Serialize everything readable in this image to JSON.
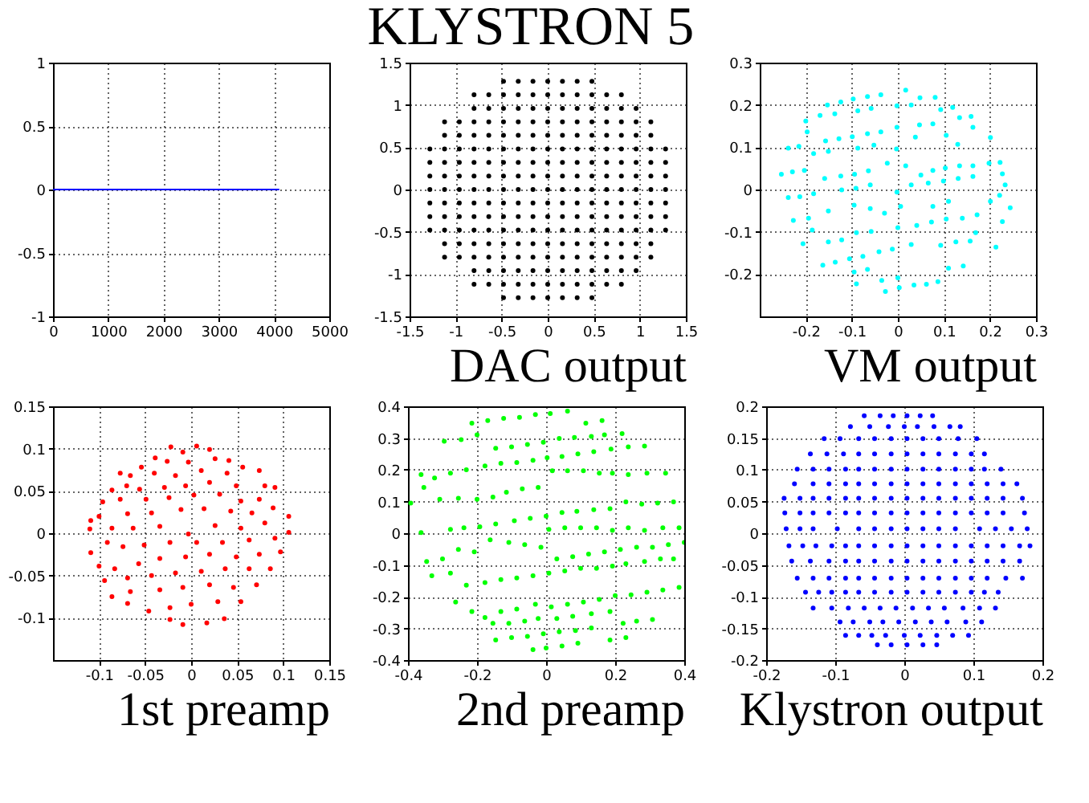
{
  "chart_data": [
    {
      "type": "line",
      "xlim": [
        0,
        5000
      ],
      "xticks": [
        0,
        1000,
        2000,
        3000,
        4000,
        5000
      ],
      "ylim": [
        -1,
        1
      ],
      "yticks": [
        -1,
        -0.5,
        0,
        0.5,
        1
      ],
      "grid": true,
      "marker": "none",
      "line_style": "solid",
      "series": [
        {
          "color": "#0000ff",
          "x": [
            0,
            4095
          ],
          "values": [
            0,
            0
          ]
        }
      ]
    },
    {
      "type": "scatter",
      "title": "KLYSTRON 5",
      "xlabel": "DAC output",
      "xlim": [
        -1.5,
        1.5
      ],
      "xticks": [
        -1.5,
        -1,
        -0.5,
        0,
        0.5,
        1,
        1.5
      ],
      "ylim": [
        -1.5,
        1.5
      ],
      "yticks": [
        -1.5,
        -1,
        -0.5,
        0,
        0.5,
        1,
        1.5
      ],
      "grid": true,
      "marker": "circle",
      "series": [
        {
          "color": "#000000",
          "x": [
            -0.48,
            -0.32,
            -0.16,
            0,
            0.16,
            0.32,
            0.48,
            -0.8,
            -0.64,
            -0.48,
            -0.32,
            -0.16,
            0,
            0.16,
            0.32,
            0.48,
            0.64,
            0.8,
            -0.8,
            -0.64,
            -0.48,
            -0.32,
            -0.16,
            0,
            0.16,
            0.32,
            0.48,
            0.64,
            0.8,
            0.96,
            -1.12,
            -0.96,
            -0.8,
            -0.64,
            -0.48,
            -0.32,
            -0.16,
            0,
            0.16,
            0.32,
            0.48,
            0.64,
            0.8,
            0.96,
            1.12,
            -1.12,
            -0.96,
            -0.8,
            -0.64,
            -0.48,
            -0.32,
            -0.16,
            0,
            0.16,
            0.32,
            0.48,
            0.64,
            0.8,
            0.96,
            1.12,
            -1.28,
            -1.12,
            -0.96,
            -0.8,
            -0.64,
            -0.48,
            -0.32,
            -0.16,
            0,
            0.16,
            0.32,
            0.48,
            0.64,
            0.8,
            0.96,
            1.12,
            1.28,
            -1.28,
            -1.12,
            -0.96,
            -0.8,
            -0.64,
            -0.48,
            -0.32,
            -0.16,
            0,
            0.16,
            0.32,
            0.48,
            0.64,
            0.8,
            0.96,
            1.12,
            1.28,
            -1.28,
            -1.12,
            -0.96,
            -0.8,
            -0.64,
            -0.48,
            -0.32,
            -0.16,
            0,
            0.16,
            0.32,
            0.48,
            0.64,
            0.8,
            0.96,
            1.12,
            1.28,
            -1.28,
            -1.12,
            -0.96,
            -0.8,
            -0.64,
            -0.48,
            -0.32,
            -0.16,
            0,
            0.16,
            0.32,
            0.48,
            0.64,
            0.8,
            0.96,
            1.12,
            1.28,
            -1.28,
            -1.12,
            -0.96,
            -0.8,
            -0.64,
            -0.48,
            -0.32,
            -0.16,
            0,
            0.16,
            0.32,
            0.48,
            0.64,
            0.8,
            0.96,
            1.12,
            1.28,
            -1.28,
            -1.12,
            -0.96,
            -0.8,
            -0.64,
            -0.48,
            -0.32,
            -0.16,
            0,
            0.16,
            0.32,
            0.48,
            0.64,
            0.8,
            0.96,
            1.12,
            1.28,
            -1.28,
            -1.12,
            -0.96,
            -0.8,
            -0.64,
            -0.48,
            -0.32,
            -0.16,
            0,
            0.16,
            0.32,
            0.48,
            0.64,
            0.8,
            0.96,
            1.12,
            1.28,
            -1.12,
            -0.96,
            -0.8,
            -0.64,
            -0.48,
            -0.32,
            -0.16,
            0,
            0.16,
            0.32,
            0.48,
            0.64,
            0.8,
            0.96,
            1.12,
            -1.12,
            -0.96,
            -0.8,
            -0.64,
            -0.48,
            -0.32,
            -0.16,
            0,
            0.16,
            0.32,
            0.48,
            0.64,
            0.8,
            0.96,
            1.12,
            -0.8,
            -0.64,
            -0.48,
            -0.32,
            -0.16,
            0,
            0.16,
            0.32,
            0.48,
            0.64,
            0.8,
            0.96,
            -0.8,
            -0.64,
            -0.48,
            -0.32,
            -0.16,
            0,
            0.16,
            0.32,
            0.48,
            0.64,
            0.8,
            -0.48,
            -0.32,
            -0.16,
            0,
            0.16,
            0.32,
            0.48
          ],
          "values": [
            1.28,
            1.28,
            1.28,
            1.28,
            1.28,
            1.28,
            1.28,
            1.12,
            1.12,
            1.12,
            1.12,
            1.12,
            1.12,
            1.12,
            1.12,
            1.12,
            1.12,
            1.12,
            0.96,
            0.96,
            0.96,
            0.96,
            0.96,
            0.96,
            0.96,
            0.96,
            0.96,
            0.96,
            0.96,
            0.96,
            0.8,
            0.8,
            0.8,
            0.8,
            0.8,
            0.8,
            0.8,
            0.8,
            0.8,
            0.8,
            0.8,
            0.8,
            0.8,
            0.8,
            0.8,
            0.64,
            0.64,
            0.64,
            0.64,
            0.64,
            0.64,
            0.64,
            0.64,
            0.64,
            0.64,
            0.64,
            0.64,
            0.64,
            0.64,
            0.64,
            0.48,
            0.48,
            0.48,
            0.48,
            0.48,
            0.48,
            0.48,
            0.48,
            0.48,
            0.48,
            0.48,
            0.48,
            0.48,
            0.48,
            0.48,
            0.48,
            0.48,
            0.32,
            0.32,
            0.32,
            0.32,
            0.32,
            0.32,
            0.32,
            0.32,
            0.32,
            0.32,
            0.32,
            0.32,
            0.32,
            0.32,
            0.32,
            0.32,
            0.32,
            0.16,
            0.16,
            0.16,
            0.16,
            0.16,
            0.16,
            0.16,
            0.16,
            0.16,
            0.16,
            0.16,
            0.16,
            0.16,
            0.16,
            0.16,
            0.16,
            0.16,
            0,
            0,
            0,
            0,
            0,
            0,
            0,
            0,
            0,
            0,
            0,
            0,
            0,
            0,
            0,
            0,
            0,
            -0.16,
            -0.16,
            -0.16,
            -0.16,
            -0.16,
            -0.16,
            -0.16,
            -0.16,
            -0.16,
            -0.16,
            -0.16,
            -0.16,
            -0.16,
            -0.16,
            -0.16,
            -0.16,
            -0.16,
            -0.32,
            -0.32,
            -0.32,
            -0.32,
            -0.32,
            -0.32,
            -0.32,
            -0.32,
            -0.32,
            -0.32,
            -0.32,
            -0.32,
            -0.32,
            -0.32,
            -0.32,
            -0.32,
            -0.32,
            -0.48,
            -0.48,
            -0.48,
            -0.48,
            -0.48,
            -0.48,
            -0.48,
            -0.48,
            -0.48,
            -0.48,
            -0.48,
            -0.48,
            -0.48,
            -0.48,
            -0.48,
            -0.48,
            -0.48,
            -0.64,
            -0.64,
            -0.64,
            -0.64,
            -0.64,
            -0.64,
            -0.64,
            -0.64,
            -0.64,
            -0.64,
            -0.64,
            -0.64,
            -0.64,
            -0.64,
            -0.64,
            -0.8,
            -0.8,
            -0.8,
            -0.8,
            -0.8,
            -0.8,
            -0.8,
            -0.8,
            -0.8,
            -0.8,
            -0.8,
            -0.8,
            -0.8,
            -0.8,
            -0.8,
            -0.96,
            -0.96,
            -0.96,
            -0.96,
            -0.96,
            -0.96,
            -0.96,
            -0.96,
            -0.96,
            -0.96,
            -0.96,
            -0.96,
            -1.12,
            -1.12,
            -1.12,
            -1.12,
            -1.12,
            -1.12,
            -1.12,
            -1.12,
            -1.12,
            -1.12,
            -1.12,
            -1.28,
            -1.28,
            -1.28,
            -1.28,
            -1.28,
            -1.28,
            -1.28
          ]
        }
      ]
    },
    {
      "type": "scatter",
      "xlabel": "VM output",
      "xlim": [
        -0.3,
        0.3
      ],
      "xticks": [
        -0.2,
        -0.1,
        0,
        0.1,
        0.2,
        0.3
      ],
      "ylim": [
        -0.3,
        0.3
      ],
      "yticks": [
        -0.2,
        -0.1,
        0,
        0.1,
        0.2,
        0.3
      ],
      "grid": true,
      "marker": "circle",
      "series": [
        {
          "color": "#00ffff",
          "x": [
            0.017,
            -0.037,
            -0.066,
            -0.097,
            -0.124,
            -0.153,
            0.048,
            0.081,
            0.119,
            -0.2,
            -0.197,
            -0.169,
            -0.137,
            -0.087,
            -0.058,
            -0.002,
            0.029,
            0.093,
            0.159,
            -0.157,
            -0.128,
            -0.099,
            -0.066,
            -0.037,
            -0.002,
            0.047,
            0.076,
            0.134,
            0.163,
            0.201,
            -0.238,
            -0.215,
            -0.183,
            -0.151,
            -0.087,
            -0.052,
            -0.003,
            0.038,
            0.105,
            0.13,
            0.163,
            0.198,
            0.222,
            -0.253,
            -0.229,
            -0.203,
            -0.159,
            -0.124,
            -0.094,
            -0.064,
            -0.023,
            0.017,
            0.05,
            0.076,
            0.103,
            0.134,
            0.227,
            0.233,
            -0.238,
            -0.213,
            -0.183,
            -0.122,
            -0.091,
            -0.06,
            -0.002,
            0.029,
            0.066,
            0.099,
            0.131,
            0.163,
            0.221,
            0.201,
            0.244,
            -0.227,
            -0.194,
            -0.151,
            -0.095,
            -0.06,
            -0.029,
            0.006,
            0.076,
            0.11,
            0.14,
            0.172,
            0.227,
            -0.206,
            -0.186,
            -0.151,
            -0.122,
            -0.09,
            -0.058,
            0,
            0.041,
            0.073,
            0.105,
            0.169,
            0.213,
            -0.163,
            -0.136,
            -0.105,
            -0.076,
            -0.041,
            -0.012,
            0.029,
            0.093,
            0.126,
            0.157,
            0.142,
            0.11,
            -0.095,
            -0.09,
            -0.066,
            -0.035,
            0,
            -0.027,
            0.003,
            0.035,
            0.062,
            0.087
          ],
          "values": [
            0.235,
            0.224,
            0.22,
            0.214,
            0.207,
            0.2,
            0.217,
            0.218,
            0.194,
            0.162,
            0.136,
            0.175,
            0.179,
            0.186,
            0.192,
            0.198,
            0.2,
            0.189,
            0.173,
            0.115,
            0.12,
            0.125,
            0.132,
            0.136,
            0.147,
            0.153,
            0.155,
            0.17,
            0.147,
            0.123,
            0.098,
            0.102,
            0.085,
            0.09,
            0.098,
            0.105,
            0.096,
            0.124,
            0.128,
            0.107,
            0.056,
            0.062,
            0.064,
            0.036,
            0.042,
            0.045,
            0.026,
            0.032,
            0.036,
            0.044,
            0.062,
            0.056,
            0.034,
            0.045,
            0.051,
            0.056,
            0.037,
            0.011,
            -0.019,
            -0.017,
            -0.01,
            -0.001,
            0.003,
            0.011,
            -0.006,
            0.011,
            0.015,
            0.02,
            0.026,
            0.031,
            -0.014,
            -0.028,
            -0.043,
            -0.073,
            -0.068,
            -0.051,
            -0.037,
            -0.045,
            -0.056,
            -0.04,
            -0.04,
            -0.028,
            -0.068,
            -0.06,
            -0.076,
            -0.128,
            -0.096,
            -0.124,
            -0.119,
            -0.102,
            -0.099,
            -0.09,
            -0.085,
            -0.077,
            -0.07,
            -0.102,
            -0.136,
            -0.179,
            -0.172,
            -0.164,
            -0.158,
            -0.147,
            -0.141,
            -0.13,
            -0.132,
            -0.124,
            -0.122,
            -0.181,
            -0.186,
            -0.195,
            -0.223,
            -0.189,
            -0.215,
            -0.209,
            -0.241,
            -0.232,
            -0.226,
            -0.224,
            -0.218
          ]
        }
      ]
    },
    {
      "type": "scatter",
      "xlabel": "1st preamp",
      "xlim": [
        -0.15,
        0.15
      ],
      "xticks": [
        -0.1,
        -0.05,
        0,
        0.05,
        0.1,
        0.15
      ],
      "ylim": [
        -0.15,
        0.15
      ],
      "yticks": [
        -0.1,
        -0.05,
        0,
        0.05,
        0.1,
        0.15
      ],
      "grid": true,
      "marker": "circle",
      "series": [
        {
          "color": "#ff0000",
          "x": [
            -0.022,
            0.006,
            0.02,
            -0.039,
            -0.009,
            -0.054,
            -0.026,
            -0.003,
            0.026,
            0.041,
            0.056,
            -0.077,
            -0.066,
            -0.04,
            -0.017,
            0.011,
            0.039,
            0.074,
            -0.086,
            -0.07,
            -0.056,
            -0.029,
            -0.006,
            0.02,
            0.049,
            0.08,
            0.091,
            -0.096,
            -0.077,
            -0.049,
            -0.024,
            0.003,
            0.031,
            0.054,
            0.074,
            -0.109,
            -0.1,
            -0.069,
            -0.043,
            -0.011,
            0.014,
            0.043,
            0.066,
            0.089,
            0.106,
            -0.11,
            -0.086,
            -0.063,
            -0.034,
            -0.003,
            0.026,
            0.054,
            0.08,
            0.106,
            -0.109,
            -0.091,
            -0.074,
            -0.051,
            -0.023,
            0.006,
            0.034,
            0.063,
            0.091,
            -0.1,
            -0.083,
            -0.057,
            -0.034,
            -0.006,
            0.02,
            0.049,
            0.074,
            0.097,
            -0.094,
            -0.069,
            -0.043,
            -0.017,
            0.011,
            0.037,
            0.063,
            0.086,
            -0.086,
            -0.066,
            -0.034,
            -0.009,
            0.02,
            0.046,
            0.071,
            -0.069,
            -0.046,
            -0.023,
            0,
            0.029,
            0.054,
            -0.023,
            -0.009,
            0.017,
            0.036
          ],
          "values": [
            0.102,
            0.103,
            0.099,
            0.089,
            0.096,
            0.078,
            0.085,
            0.084,
            0.088,
            0.086,
            0.078,
            0.071,
            0.068,
            0.071,
            0.068,
            0.074,
            0.071,
            0.074,
            0.051,
            0.056,
            0.052,
            0.054,
            0.056,
            0.06,
            0.056,
            0.056,
            0.054,
            0.037,
            0.04,
            0.04,
            0.042,
            0.045,
            0.046,
            0.038,
            0.04,
            0.015,
            0.02,
            0.023,
            0.024,
            0.028,
            0.029,
            0.026,
            0.024,
            0.03,
            0.02,
            0.005,
            0.006,
            0.006,
            0.008,
            -0.001,
            0.009,
            0.006,
            0.012,
            0.001,
            -0.023,
            -0.011,
            -0.016,
            -0.014,
            -0.011,
            -0.011,
            -0.011,
            -0.008,
            -0.006,
            -0.039,
            -0.042,
            -0.036,
            -0.03,
            -0.028,
            -0.025,
            -0.028,
            -0.025,
            -0.022,
            -0.056,
            -0.053,
            -0.05,
            -0.047,
            -0.045,
            -0.042,
            -0.042,
            -0.042,
            -0.075,
            -0.069,
            -0.067,
            -0.064,
            -0.061,
            -0.064,
            -0.061,
            -0.083,
            -0.092,
            -0.088,
            -0.084,
            -0.081,
            -0.081,
            -0.102,
            -0.108,
            -0.106,
            -0.101
          ]
        }
      ]
    },
    {
      "type": "scatter",
      "xlabel": "2nd preamp",
      "xlim": [
        -0.4,
        0.4
      ],
      "xticks": [
        -0.4,
        -0.2,
        0,
        0.2,
        0.4
      ],
      "ylim": [
        -0.4,
        0.4
      ],
      "yticks": [
        -0.4,
        -0.3,
        -0.2,
        -0.1,
        0,
        0.1,
        0.2,
        0.3,
        0.4
      ],
      "grid": true,
      "marker": "circle",
      "series": [
        {
          "color": "#00ff00",
          "x": [
            0.062,
            0.012,
            -0.031,
            -0.077,
            -0.123,
            -0.169,
            -0.215,
            0.115,
            0.162,
            0.22,
            0.169,
            0.131,
            0.082,
            0.038,
            -0.008,
            -0.054,
            -0.1,
            -0.146,
            -0.2,
            -0.246,
            -0.295,
            0.285,
            0.238,
            0.188,
            0.138,
            0.092,
            0.046,
            0.003,
            -0.038,
            -0.085,
            -0.131,
            -0.177,
            -0.231,
            -0.277,
            -0.362,
            -0.323,
            0.346,
            0.292,
            0.238,
            0.192,
            0.154,
            0.108,
            0.062,
            0.018,
            -0.023,
            -0.069,
            -0.115,
            -0.154,
            -0.2,
            -0.254,
            -0.308,
            -0.392,
            -0.354,
            0.369,
            0.323,
            0.277,
            0.231,
            0.185,
            0.138,
            0.089,
            0.046,
            0,
            -0.046,
            -0.092,
            -0.146,
            -0.192,
            -0.238,
            -0.277,
            -0.362,
            0.385,
            0.338,
            0.285,
            0.238,
            0.192,
            0.146,
            0.1,
            0.054,
            0.008,
            0.4,
            0.354,
            0.308,
            0.262,
            0.215,
            0.169,
            0.123,
            0.077,
            0.031,
            -0.015,
            -0.062,
            -0.108,
            -0.162,
            -0.208,
            -0.254,
            -0.3,
            -0.346,
            -0.331,
            -0.277,
            -0.231,
            -0.177,
            -0.131,
            -0.085,
            -0.038,
            0.008,
            0.054,
            0.1,
            0.146,
            0.192,
            0.231,
            0.285,
            0.331,
            0.369,
            0.385,
            0.338,
            0.292,
            0.246,
            0.2,
            0.154,
            0.108,
            0.062,
            0.015,
            -0.031,
            -0.085,
            -0.131,
            -0.177,
            -0.262,
            -0.215,
            -0.154,
            -0.108,
            -0.062,
            -0.023,
            0.031,
            0.077,
            0.131,
            0.185,
            0.223,
            0.262,
            0.308,
            -0.146,
            -0.1,
            -0.054,
            -0.008,
            0.038,
            0.085,
            0.131,
            0.185,
            0.231,
            -0.038,
            0,
            0.046,
            0.092
          ],
          "values": [
            0.385,
            0.377,
            0.374,
            0.365,
            0.362,
            0.355,
            0.347,
            0.347,
            0.355,
            0.314,
            0.31,
            0.305,
            0.302,
            0.299,
            0.287,
            0.28,
            0.272,
            0.268,
            0.31,
            0.295,
            0.29,
            0.275,
            0.272,
            0.265,
            0.257,
            0.25,
            0.242,
            0.238,
            0.23,
            0.223,
            0.22,
            0.212,
            0.2,
            0.189,
            0.185,
            0.174,
            0.189,
            0.189,
            0.185,
            0.189,
            0.189,
            0.197,
            0.197,
            0.197,
            0.144,
            0.14,
            0.129,
            0.114,
            0.107,
            0.11,
            0.107,
            0.095,
            0.144,
            0.099,
            0.095,
            0.092,
            0.099,
            0.077,
            0.074,
            0.069,
            0.065,
            0.054,
            0.047,
            0.039,
            0.029,
            0.02,
            0.017,
            0.012,
            0.002,
            0.017,
            0.017,
            0.009,
            0.017,
            0.009,
            0.017,
            0.017,
            0.017,
            0.012,
            -0.029,
            -0.036,
            -0.044,
            -0.044,
            -0.051,
            -0.059,
            -0.066,
            -0.074,
            -0.081,
            -0.044,
            -0.036,
            -0.029,
            -0.021,
            -0.059,
            -0.051,
            -0.081,
            -0.089,
            -0.134,
            -0.126,
            -0.164,
            -0.156,
            -0.146,
            -0.141,
            -0.134,
            -0.126,
            -0.119,
            -0.111,
            -0.111,
            -0.104,
            -0.096,
            -0.089,
            -0.081,
            -0.081,
            -0.171,
            -0.179,
            -0.186,
            -0.194,
            -0.197,
            -0.209,
            -0.217,
            -0.224,
            -0.232,
            -0.224,
            -0.239,
            -0.247,
            -0.266,
            -0.217,
            -0.247,
            -0.284,
            -0.284,
            -0.277,
            -0.269,
            -0.269,
            -0.262,
            -0.254,
            -0.247,
            -0.284,
            -0.277,
            -0.272,
            -0.337,
            -0.329,
            -0.325,
            -0.317,
            -0.311,
            -0.307,
            -0.299,
            -0.337,
            -0.329,
            -0.367,
            -0.362,
            -0.356,
            -0.347
          ]
        }
      ]
    },
    {
      "type": "scatter",
      "xlabel": "Klystron output",
      "xlim": [
        -0.2,
        0.2
      ],
      "xticks": [
        -0.2,
        -0.1,
        0,
        0.1,
        0.2
      ],
      "ylim": [
        -0.2,
        0.2
      ],
      "yticks": [
        -0.2,
        -0.15,
        -0.1,
        -0.05,
        0,
        0.05,
        0.1,
        0.15,
        0.2
      ],
      "grid": true,
      "marker": "circle",
      "series": [
        {
          "color": "#0000ff",
          "x": [
            -0.058,
            -0.035,
            -0.016,
            0.004,
            0.023,
            0.041,
            -0.078,
            -0.05,
            -0.023,
            0,
            0.019,
            0.043,
            0.066,
            0.081,
            -0.116,
            -0.093,
            -0.066,
            -0.043,
            -0.019,
            0.004,
            0.027,
            0.05,
            0.078,
            0.105,
            -0.136,
            -0.112,
            -0.088,
            -0.066,
            -0.043,
            -0.019,
            0.004,
            0.027,
            0.05,
            0.074,
            0.097,
            0.116,
            -0.155,
            -0.132,
            -0.109,
            -0.085,
            -0.066,
            -0.043,
            -0.019,
            0.004,
            0.027,
            0.05,
            0.074,
            0.097,
            0.116,
            0.14,
            -0.159,
            -0.132,
            -0.109,
            -0.085,
            -0.066,
            -0.043,
            -0.019,
            0.004,
            0.027,
            0.05,
            0.074,
            0.097,
            0.12,
            0.143,
            0.163,
            -0.174,
            -0.151,
            -0.132,
            -0.109,
            -0.085,
            -0.066,
            -0.043,
            -0.019,
            0.004,
            0.027,
            0.05,
            0.074,
            0.097,
            0.12,
            0.143,
            0.171,
            -0.173,
            -0.151,
            -0.132,
            -0.109,
            -0.085,
            -0.066,
            -0.043,
            -0.019,
            0.004,
            0.027,
            0.05,
            0.074,
            0.097,
            0.12,
            0.143,
            0.174,
            -0.171,
            -0.151,
            -0.132,
            -0.097,
            -0.066,
            -0.043,
            -0.019,
            0.004,
            0.027,
            0.05,
            0.074,
            0.109,
            0.132,
            0.155,
            0.178,
            -0.167,
            -0.147,
            -0.128,
            -0.105,
            -0.085,
            -0.066,
            -0.043,
            -0.019,
            0.004,
            0.027,
            0.05,
            0.074,
            0.097,
            0.12,
            0.143,
            0.167,
            0.182,
            -0.163,
            -0.136,
            -0.109,
            -0.085,
            -0.066,
            -0.043,
            -0.019,
            0.004,
            0.027,
            0.05,
            0.074,
            0.097,
            0.12,
            0.143,
            0.167,
            -0.155,
            -0.132,
            -0.109,
            -0.085,
            -0.066,
            -0.043,
            -0.019,
            0.004,
            0.027,
            0.05,
            0.074,
            0.097,
            0.12,
            0.147,
            0.171,
            -0.143,
            -0.124,
            -0.105,
            -0.085,
            -0.066,
            -0.043,
            -0.019,
            0.004,
            0.027,
            0.05,
            0.074,
            0.097,
            0.116,
            0.136,
            -0.132,
            -0.105,
            -0.081,
            -0.058,
            -0.035,
            -0.012,
            0.012,
            0.035,
            0.058,
            0.085,
            0.109,
            0.132,
            -0.093,
            -0.074,
            -0.05,
            -0.031,
            -0.008,
            0.016,
            0.039,
            0.062,
            0.089,
            0.112,
            -0.085,
            -0.066,
            -0.047,
            -0.027,
            0,
            0.023,
            0.047,
            0.07,
            0.093,
            -0.039,
            -0.019,
            0.004,
            0.027,
            0.047
          ],
          "values": [
            0.185,
            0.185,
            0.185,
            0.185,
            0.185,
            0.185,
            0.168,
            0.168,
            0.168,
            0.168,
            0.168,
            0.168,
            0.168,
            0.168,
            0.149,
            0.149,
            0.149,
            0.149,
            0.149,
            0.149,
            0.149,
            0.149,
            0.149,
            0.149,
            0.125,
            0.125,
            0.125,
            0.125,
            0.125,
            0.125,
            0.125,
            0.125,
            0.125,
            0.125,
            0.125,
            0.125,
            0.101,
            0.101,
            0.101,
            0.101,
            0.101,
            0.101,
            0.101,
            0.101,
            0.101,
            0.101,
            0.101,
            0.101,
            0.101,
            0.101,
            0.078,
            0.078,
            0.078,
            0.078,
            0.078,
            0.078,
            0.078,
            0.078,
            0.078,
            0.078,
            0.078,
            0.078,
            0.078,
            0.078,
            0.078,
            0.055,
            0.055,
            0.055,
            0.055,
            0.055,
            0.055,
            0.055,
            0.055,
            0.055,
            0.055,
            0.055,
            0.055,
            0.055,
            0.055,
            0.055,
            0.055,
            0.032,
            0.032,
            0.032,
            0.032,
            0.032,
            0.032,
            0.032,
            0.032,
            0.032,
            0.032,
            0.032,
            0.032,
            0.032,
            0.032,
            0.032,
            0.032,
            0.007,
            0.007,
            0.007,
            0.007,
            0.007,
            0.007,
            0.007,
            0.007,
            0.007,
            0.007,
            0.007,
            0.007,
            0.007,
            0.007,
            0.007,
            -0.02,
            -0.02,
            -0.02,
            -0.02,
            -0.02,
            -0.02,
            -0.02,
            -0.02,
            -0.02,
            -0.02,
            -0.02,
            -0.02,
            -0.02,
            -0.02,
            -0.02,
            -0.02,
            -0.02,
            -0.044,
            -0.044,
            -0.044,
            -0.044,
            -0.044,
            -0.044,
            -0.044,
            -0.044,
            -0.044,
            -0.044,
            -0.044,
            -0.044,
            -0.044,
            -0.044,
            -0.044,
            -0.071,
            -0.071,
            -0.071,
            -0.071,
            -0.071,
            -0.071,
            -0.071,
            -0.071,
            -0.071,
            -0.071,
            -0.071,
            -0.071,
            -0.071,
            -0.071,
            -0.071,
            -0.093,
            -0.093,
            -0.093,
            -0.093,
            -0.093,
            -0.093,
            -0.093,
            -0.093,
            -0.093,
            -0.093,
            -0.093,
            -0.093,
            -0.093,
            -0.093,
            -0.118,
            -0.118,
            -0.118,
            -0.118,
            -0.118,
            -0.118,
            -0.118,
            -0.118,
            -0.118,
            -0.118,
            -0.118,
            -0.118,
            -0.14,
            -0.14,
            -0.14,
            -0.14,
            -0.14,
            -0.14,
            -0.14,
            -0.14,
            -0.14,
            -0.14,
            -0.161,
            -0.161,
            -0.161,
            -0.161,
            -0.161,
            -0.161,
            -0.161,
            -0.161,
            -0.161,
            -0.176,
            -0.176,
            -0.176,
            -0.176,
            -0.176
          ]
        }
      ]
    }
  ]
}
